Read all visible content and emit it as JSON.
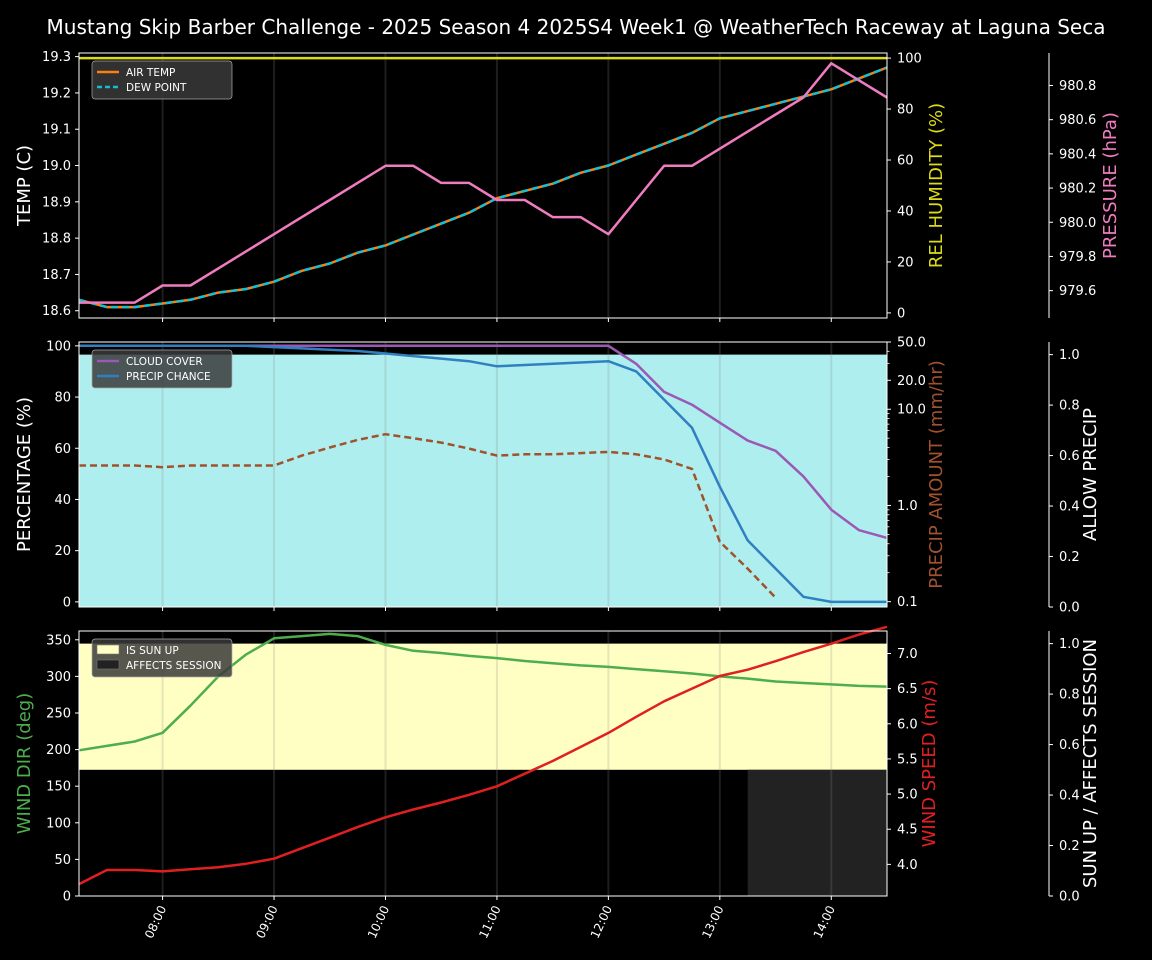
{
  "title": "Mustang Skip Barber Challenge - 2025 Season 4 2025S4 Week1 @ WeatherTech Raceway at Laguna Seca",
  "x_ticks": [
    "08:00",
    "09:00",
    "10:00",
    "11:00",
    "12:00",
    "13:00",
    "14:00"
  ],
  "colors": {
    "air_temp": "#ff7f0e",
    "dew_point": "#17becf",
    "humidity": "#dbdb18",
    "pressure": "#f07cc0",
    "cloud": "#9b59b6",
    "precip_chance": "#2f7fc1",
    "precip_amount": "#a0522d",
    "allow_precip": "#afeeee",
    "wind_dir": "#4cae4c",
    "wind_speed": "#e02020",
    "sun_up": "#ffffc4",
    "affects": "#222222"
  },
  "chart_data": [
    {
      "type": "line",
      "panel": "temperature",
      "x": [
        "07:15",
        "07:30",
        "07:45",
        "08:00",
        "08:15",
        "08:30",
        "08:45",
        "09:00",
        "09:15",
        "09:30",
        "09:45",
        "10:00",
        "10:15",
        "10:30",
        "10:45",
        "11:00",
        "11:15",
        "11:30",
        "11:45",
        "12:00",
        "12:15",
        "12:30",
        "12:45",
        "13:00",
        "13:15",
        "13:30",
        "13:45",
        "14:00",
        "14:15",
        "14:30"
      ],
      "ylabel": "TEMP (C)",
      "y_ticks": [
        "18.6",
        "18.7",
        "18.8",
        "18.9",
        "19.0",
        "19.1",
        "19.2",
        "19.3"
      ],
      "ylim": [
        18.58,
        19.31
      ],
      "y2label": "REL HUMIDITY (%)",
      "y2_ticks": [
        "0",
        "20",
        "40",
        "60",
        "80",
        "100"
      ],
      "y2lim": [
        -2,
        102
      ],
      "y3label": "PRESSURE (hPa)",
      "y3_ticks": [
        "979.6",
        "979.8",
        "980.0",
        "980.2",
        "980.4",
        "980.6",
        "980.8"
      ],
      "y3lim": [
        979.44,
        980.99
      ],
      "legend": "top-left",
      "series": [
        {
          "name": "AIR TEMP",
          "axis": "left",
          "values": [
            18.63,
            18.61,
            18.61,
            18.62,
            18.63,
            18.65,
            18.66,
            18.68,
            18.71,
            18.73,
            18.76,
            18.78,
            18.81,
            18.84,
            18.87,
            18.91,
            18.93,
            18.95,
            18.98,
            19.0,
            19.03,
            19.06,
            19.09,
            19.13,
            19.15,
            19.17,
            19.19,
            19.21,
            19.24,
            19.27
          ]
        },
        {
          "name": "DEW POINT",
          "axis": "left",
          "values": [
            18.63,
            18.61,
            18.61,
            18.62,
            18.63,
            18.65,
            18.66,
            18.68,
            18.71,
            18.73,
            18.76,
            18.78,
            18.81,
            18.84,
            18.87,
            18.91,
            18.93,
            18.95,
            18.98,
            19.0,
            19.03,
            19.06,
            19.09,
            19.13,
            19.15,
            19.17,
            19.19,
            19.21,
            19.24,
            19.27
          ]
        },
        {
          "axis": "right",
          "values": [
            100,
            100,
            100,
            100,
            100,
            100,
            100,
            100,
            100,
            100,
            100,
            100,
            100,
            100,
            100,
            100,
            100,
            100,
            100,
            100,
            100,
            100,
            100,
            100,
            100,
            100,
            100,
            100,
            100,
            100
          ]
        },
        {
          "axis": "third",
          "values": [
            979.53,
            979.53,
            979.53,
            979.63,
            979.63,
            979.73,
            979.83,
            979.93,
            980.03,
            980.13,
            980.23,
            980.33,
            980.33,
            980.23,
            980.23,
            980.13,
            980.13,
            980.03,
            980.03,
            979.93,
            980.13,
            980.33,
            980.33,
            980.43,
            980.53,
            980.63,
            980.73,
            980.93,
            980.83,
            980.73
          ]
        }
      ]
    },
    {
      "type": "line",
      "panel": "precipitation",
      "x": [
        "07:15",
        "07:30",
        "07:45",
        "08:00",
        "08:15",
        "08:30",
        "08:45",
        "09:00",
        "09:15",
        "09:30",
        "09:45",
        "10:00",
        "10:15",
        "10:30",
        "10:45",
        "11:00",
        "11:15",
        "11:30",
        "11:45",
        "12:00",
        "12:15",
        "12:30",
        "12:45",
        "13:00",
        "13:15",
        "13:30",
        "13:45",
        "14:00",
        "14:15",
        "14:30"
      ],
      "ylabel": "PERCENTAGE (%)",
      "y_ticks": [
        "0",
        "20",
        "40",
        "60",
        "80",
        "100"
      ],
      "ylim": [
        -2,
        101.5
      ],
      "y2label": "PRECIP AMOUNT (mm/hr)",
      "y2_ticks": [
        "0.1",
        "1.0",
        "10.0",
        "20.0",
        "50.0"
      ],
      "y2lim": [
        0.088,
        50
      ],
      "y2_scale": "log",
      "y3label": "ALLOW PRECIP",
      "y3_ticks": [
        "0.0",
        "0.2",
        "0.4",
        "0.6",
        "0.8",
        "1.0"
      ],
      "y3lim": [
        0,
        1.05
      ],
      "legend": "top-left",
      "allow_precip": 1.0,
      "series": [
        {
          "name": "CLOUD COVER",
          "axis": "left",
          "values": [
            100,
            100,
            100,
            100,
            100,
            100,
            100,
            100,
            100,
            100,
            100,
            100,
            100,
            100,
            100,
            100,
            100,
            100,
            100,
            100,
            93,
            82,
            77,
            70,
            63,
            59,
            49,
            36,
            28,
            25
          ]
        },
        {
          "name": "PRECIP CHANCE",
          "axis": "left",
          "values": [
            100,
            100,
            100,
            100,
            100,
            100,
            100,
            99.5,
            99,
            98.5,
            98,
            97,
            96,
            95,
            94,
            92,
            92.5,
            93,
            93.5,
            94,
            90,
            79,
            68,
            45,
            24,
            13,
            2,
            0,
            0,
            0
          ]
        },
        {
          "axis": "right",
          "values": [
            2.6,
            2.6,
            2.6,
            2.5,
            2.6,
            2.6,
            2.6,
            2.6,
            3.3,
            4.0,
            4.8,
            5.5,
            5.0,
            4.5,
            3.9,
            3.3,
            3.4,
            3.4,
            3.5,
            3.6,
            3.4,
            3.0,
            2.4,
            0.42,
            0.22,
            0.11,
            null,
            null,
            null,
            null
          ]
        }
      ]
    },
    {
      "type": "line",
      "panel": "wind",
      "x": [
        "07:15",
        "07:30",
        "07:45",
        "08:00",
        "08:15",
        "08:30",
        "08:45",
        "09:00",
        "09:15",
        "09:30",
        "09:45",
        "10:00",
        "10:15",
        "10:30",
        "10:45",
        "11:00",
        "11:15",
        "11:30",
        "11:45",
        "12:00",
        "12:15",
        "12:30",
        "12:45",
        "13:00",
        "13:15",
        "13:30",
        "13:45",
        "14:00",
        "14:15",
        "14:30"
      ],
      "ylabel": "WIND DIR (deg)",
      "y_ticks": [
        "0",
        "50",
        "100",
        "150",
        "200",
        "250",
        "300",
        "350"
      ],
      "ylim": [
        0,
        362
      ],
      "y2label": "WIND SPEED (m/s)",
      "y2_ticks": [
        "4.0",
        "4.5",
        "5.0",
        "5.5",
        "6.0",
        "6.5",
        "7.0"
      ],
      "y2lim": [
        3.55,
        7.32
      ],
      "y3label": "SUN UP / AFFECTS SESSION",
      "y3_ticks": [
        "0.0",
        "0.2",
        "0.4",
        "0.6",
        "0.8",
        "1.0"
      ],
      "y3lim": [
        0,
        1.05
      ],
      "legend": "top-left",
      "bands": [
        {
          "name": "IS SUN UP",
          "from": "07:15",
          "to": "14:30",
          "y_from": 0.5,
          "y_to": 1.0
        },
        {
          "name": "AFFECTS SESSION",
          "from": "13:15",
          "to": "14:30",
          "y_from": 0.0,
          "y_to": 0.5
        }
      ],
      "series": [
        {
          "axis": "left",
          "values": [
            199,
            205,
            211,
            223,
            260,
            300,
            330,
            352,
            355,
            358,
            355,
            343,
            335,
            332,
            328,
            325,
            321,
            318,
            315,
            313,
            310,
            307,
            304,
            300,
            297,
            293,
            291,
            289,
            287,
            286
          ]
        },
        {
          "axis": "right",
          "values": [
            3.72,
            3.92,
            3.92,
            3.9,
            3.93,
            3.96,
            4.01,
            4.08,
            4.23,
            4.38,
            4.53,
            4.67,
            4.78,
            4.88,
            4.99,
            5.11,
            5.29,
            5.47,
            5.67,
            5.87,
            6.1,
            6.32,
            6.5,
            6.68,
            6.77,
            6.89,
            7.02,
            7.14,
            7.27,
            7.38
          ]
        }
      ]
    }
  ]
}
